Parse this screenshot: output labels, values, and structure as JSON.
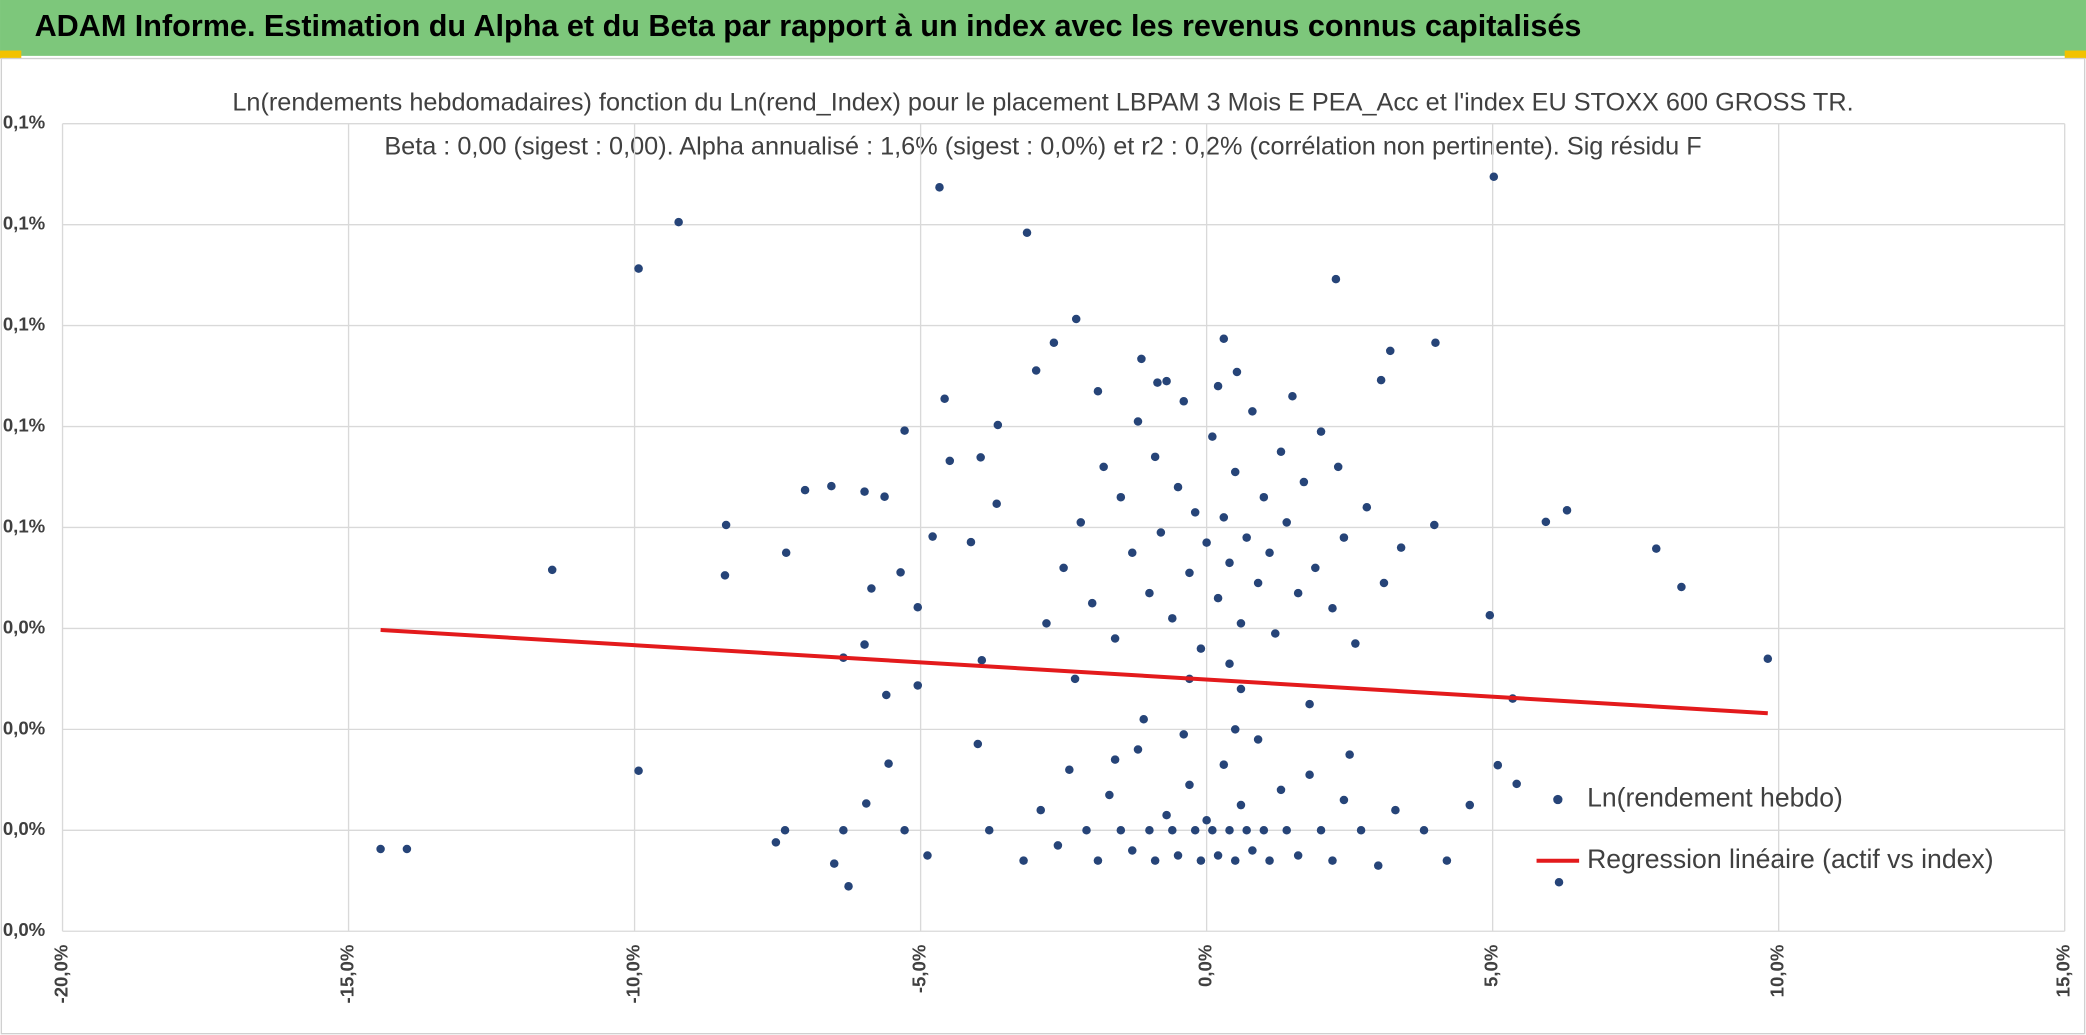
{
  "header": "ADAM Informe. Estimation du Alpha et du Beta par rapport à un index avec les revenus connus capitalisés",
  "chart_data": {
    "type": "scatter",
    "title": "Ln(rendements hebdomadaires) fonction du Ln(rend_Index) pour le placement LBPAM 3 Mois E PEA_Acc et l'index EU STOXX 600 GROSS TR.",
    "subtitle": "Beta : 0,00 (sigest : 0,00). Alpha annualisé : 1,6% (sigest : 0,0%) et r2 : 0,2% (corrélation non pertinente). Sig résidu F",
    "xlim": [
      -20,
      15
    ],
    "xticks": [
      {
        "value": -20,
        "label": "-20,0%"
      },
      {
        "value": -15,
        "label": "-15,0%"
      },
      {
        "value": -10,
        "label": "-10,0%"
      },
      {
        "value": -5,
        "label": "-5,0%"
      },
      {
        "value": 0,
        "label": "0,0%"
      },
      {
        "value": 5,
        "label": "5,0%"
      },
      {
        "value": 10,
        "label": "10,0%"
      },
      {
        "value": 15,
        "label": "15,0%"
      }
    ],
    "ylim": [
      -0.02,
      0.14
    ],
    "yticks": [
      {
        "value": -0.02,
        "label": "0,0%"
      },
      {
        "value": 0,
        "label": "0,0%"
      },
      {
        "value": 0.02,
        "label": "0,0%"
      },
      {
        "value": 0.04,
        "label": "0,0%"
      },
      {
        "value": 0.06,
        "label": "0,1%"
      },
      {
        "value": 0.08,
        "label": "0,1%"
      },
      {
        "value": 0.1,
        "label": "0,1%"
      },
      {
        "value": 0.12,
        "label": "0,1%"
      },
      {
        "value": 0.14,
        "label": "0,1%"
      }
    ],
    "grid": true,
    "series": [
      {
        "name": "Ln(rendement hebdo)",
        "color": "#264478",
        "type": "scatter",
        "x": [
          -14.44,
          -13.98,
          -11.44,
          -9.93,
          -9.93,
          -9.23,
          -8.42,
          -8.4,
          -7.35,
          -7.37,
          -7.53,
          -7.02,
          -6.56,
          -6.35,
          -6.35,
          -6.51,
          -6.26,
          -5.98,
          -5.98,
          -5.95,
          -5.86,
          -5.63,
          -5.6,
          -5.56,
          -5.35,
          -5.28,
          -5.28,
          -5.05,
          -5.05,
          -4.88,
          -4.79,
          -4.67,
          -4.58,
          -4.49,
          -4.12,
          -3.95,
          -3.93,
          -4.0,
          -3.67,
          -3.65,
          -3.14,
          -2.98,
          -2.67,
          -2.28,
          2.26,
          5.02,
          3.21,
          4.0,
          3.98,
          4.95,
          5.35,
          5.93,
          6.3,
          7.86,
          8.3,
          9.81,
          6.16,
          5.42,
          5.09,
          3.05,
          0.3,
          0.53,
          -1.14,
          -0.86,
          -2.5,
          -2.2,
          -2.0,
          -1.8,
          -1.6,
          -1.5,
          -1.3,
          -1.2,
          -1.0,
          -0.9,
          -0.8,
          -0.6,
          -0.5,
          -0.4,
          -0.3,
          -0.2,
          -0.1,
          0,
          0.1,
          0.2,
          0.3,
          0.4,
          0.5,
          0.6,
          0.7,
          0.8,
          0.9,
          1.0,
          1.1,
          1.2,
          1.3,
          1.4,
          1.6,
          1.7,
          1.9,
          2.0,
          2.2,
          2.4,
          2.6,
          2.8,
          3.1,
          3.4,
          -2.8,
          -1.9,
          -0.7,
          0.2,
          1.5,
          2.3,
          -0.3,
          0.6,
          -1.1,
          1.8,
          0.4,
          -2.3,
          -3.8,
          -3.2,
          -2.9,
          -2.6,
          -2.4,
          -2.1,
          -1.9,
          -1.7,
          -1.5,
          -1.3,
          -1.2,
          -1.0,
          -0.9,
          -0.7,
          -0.6,
          -0.5,
          -0.3,
          -0.2,
          -0.1,
          0,
          0.1,
          0.2,
          0.3,
          0.4,
          0.5,
          0.6,
          0.7,
          0.8,
          0.9,
          1.0,
          1.1,
          1.3,
          1.4,
          1.6,
          1.8,
          2.0,
          2.2,
          2.4,
          2.7,
          3.0,
          3.3,
          3.8,
          4.2,
          4.6,
          -0.4,
          0.5,
          -1.6,
          2.5
        ],
        "values": [
          -0.0037,
          -0.0037,
          0.0516,
          0.1113,
          0.0118,
          0.1205,
          0.0505,
          0.0605,
          0.055,
          0,
          -0.0024,
          0.0674,
          0.0682,
          0.0342,
          0,
          -0.0066,
          -0.0111,
          0.0671,
          0.0368,
          0.0053,
          0.0479,
          0.0661,
          0.0268,
          0.0132,
          0.0511,
          0.0792,
          0,
          0.0442,
          0.0287,
          -0.005,
          0.0582,
          0.1274,
          0.0855,
          0.0732,
          0.0571,
          0.0739,
          0.0337,
          0.0171,
          0.0647,
          0.0803,
          0.1184,
          0.0911,
          0.0966,
          0.1013,
          0.1092,
          0.1295,
          0.095,
          0.0966,
          0.0605,
          0.0426,
          0.0261,
          0.0611,
          0.0634,
          0.0558,
          0.0482,
          0.034,
          -0.0103,
          0.0092,
          0.0129,
          0.0892,
          0.0974,
          0.0908,
          0.0934,
          0.0887,
          0.052,
          0.061,
          0.045,
          0.072,
          0.038,
          0.066,
          0.055,
          0.081,
          0.047,
          0.074,
          0.059,
          0.042,
          0.068,
          0.085,
          0.051,
          0.063,
          0.036,
          0.057,
          0.078,
          0.046,
          0.062,
          0.053,
          0.071,
          0.041,
          0.058,
          0.083,
          0.049,
          0.066,
          0.055,
          0.039,
          0.075,
          0.061,
          0.047,
          0.069,
          0.052,
          0.079,
          0.044,
          0.058,
          0.037,
          0.064,
          0.049,
          0.056,
          0.041,
          0.087,
          0.089,
          0.088,
          0.086,
          0.072,
          0.03,
          0.028,
          0.022,
          0.025,
          0.033,
          0.03,
          0,
          -0.006,
          0.004,
          -0.003,
          0.012,
          0,
          -0.006,
          0.007,
          0,
          -0.004,
          0.016,
          0,
          -0.006,
          0.003,
          0,
          -0.005,
          0.009,
          0,
          -0.006,
          0.002,
          0,
          -0.005,
          0.013,
          0,
          -0.006,
          0.005,
          0,
          -0.004,
          0.018,
          0,
          -0.006,
          0.008,
          0,
          -0.005,
          0.011,
          0,
          -0.006,
          0.006,
          0,
          -0.007,
          0.004,
          0,
          -0.006,
          0.005,
          0.019,
          0.02,
          0.014,
          0.015
        ]
      },
      {
        "name": "Regression linéaire (actif vs index)",
        "color": "#e31a1c",
        "type": "line",
        "x": [
          -14.44,
          9.81
        ],
        "values": [
          0.0397,
          0.0232
        ]
      }
    ]
  }
}
